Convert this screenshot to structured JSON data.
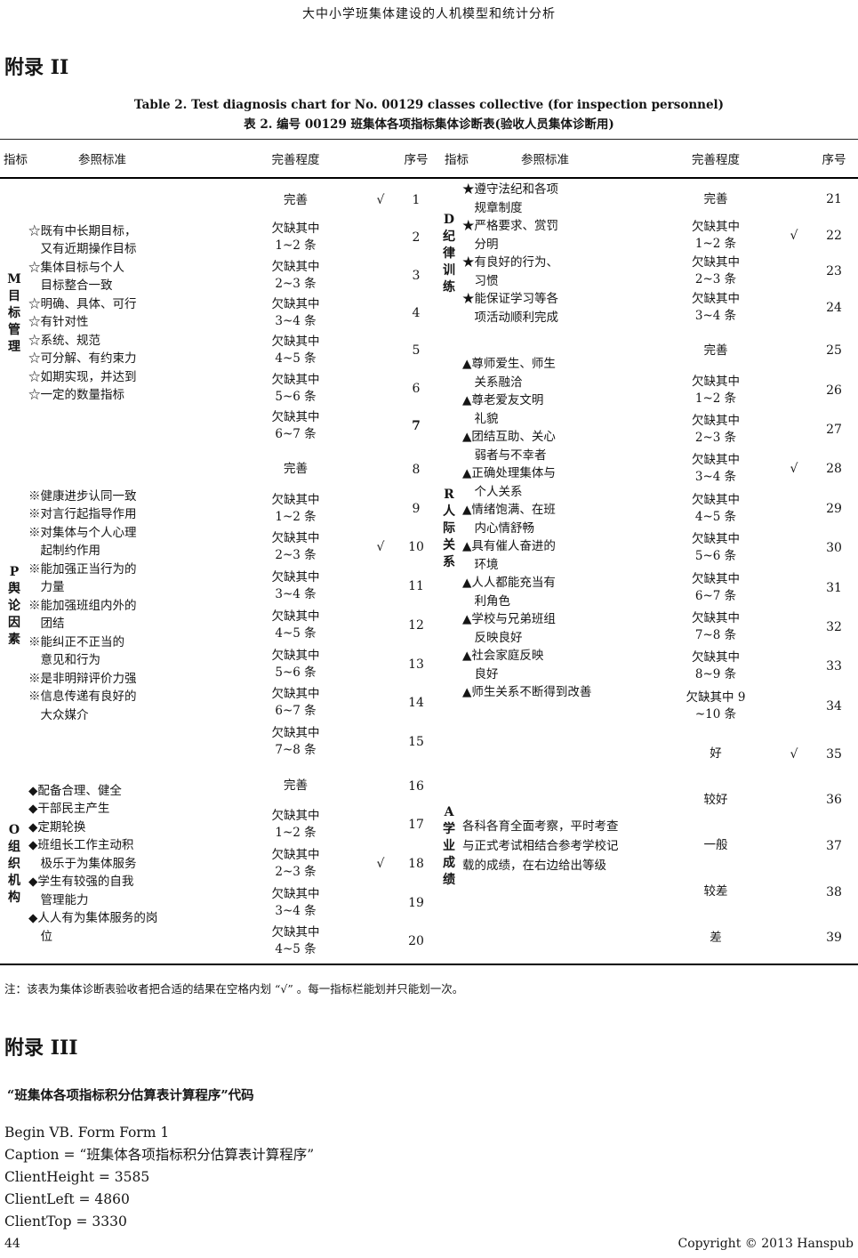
{
  "page": {
    "running_header": "大中小学班集体建设的人机模型和统计分析",
    "appendix2_heading": "附录 II",
    "table_title_en": "Table 2. Test diagnosis chart for No. 00129 classes collective (for inspection personnel)",
    "table_title_zh": "表 2.  编号 00129 班集体各项指标集体诊断表(验收人员集体诊断用)",
    "note": "注：该表为集体诊断表验收者把合适的结果在空格内划 “√” 。每一指标栏能划并只能划一次。",
    "appendix3_heading": "附录 III",
    "code_caption": "“班集体各项指标积分估算表计算程序”代码",
    "code_lines": [
      "Begin VB. Form Form 1",
      "Caption =  “班集体各项指标积分估算表计算程序”",
      "ClientHeight = 3585",
      "ClientLeft = 4860",
      "ClientTop = 3330"
    ],
    "footer_page": "44",
    "footer_copyright": "Copyright © 2013 Hanspub"
  },
  "table": {
    "headers": {
      "indicator": "指标",
      "criteria": "参照标准",
      "degree": "完善程度",
      "serial": "序号"
    },
    "check_glyph": "√",
    "halves": [
      {
        "sections": [
          {
            "id": "M",
            "group": "M\n目\n标\n管\n理",
            "criteria": [
              "☆既有中长期目标，\n　又有近期操作目标",
              "☆集体目标与个人\n　目标整合一致",
              "☆明确、具体、可行",
              "☆有针对性",
              "☆系统、规范",
              "☆可分解、有约束力",
              "☆如期实现，并达到",
              "☆一定的数量指标"
            ],
            "rows": [
              {
                "degree": "完善",
                "checked": true,
                "serial": "1"
              },
              {
                "degree": "欠缺其中\n1~2 条",
                "serial": "2"
              },
              {
                "degree": "欠缺其中\n2~3 条",
                "serial": "3"
              },
              {
                "degree": "欠缺其中\n3~4 条",
                "serial": "4"
              },
              {
                "degree": "欠缺其中\n4~5 条",
                "serial": "5"
              },
              {
                "degree": "欠缺其中\n5~6 条",
                "serial": "6"
              },
              {
                "degree": "欠缺其中\n6~7 条",
                "serial": "7",
                "bold": true
              }
            ]
          },
          {
            "id": "P",
            "group": "P\n舆\n论\n因\n素",
            "criteria": [
              "※健康进步认同一致",
              "※对言行起指导作用",
              "※对集体与个人心理\n　起制约作用",
              "※能加强正当行为的\n　力量",
              "※能加强班组内外的\n　团结",
              "※能纠正不正当的\n　意见和行为",
              "※是非明辩评价力强",
              "※信息传递有良好的\n　大众媒介"
            ],
            "rows": [
              {
                "degree": "完善",
                "serial": "8"
              },
              {
                "degree": "欠缺其中\n1~2 条",
                "serial": "9"
              },
              {
                "degree": "欠缺其中\n2~3 条",
                "checked": true,
                "serial": "10"
              },
              {
                "degree": "欠缺其中\n3~4 条",
                "serial": "11"
              },
              {
                "degree": "欠缺其中\n4~5 条",
                "serial": "12"
              },
              {
                "degree": "欠缺其中\n5~6 条",
                "serial": "13"
              },
              {
                "degree": "欠缺其中\n6~7 条",
                "serial": "14"
              },
              {
                "degree": "欠缺其中\n7~8 条",
                "serial": "15"
              }
            ]
          },
          {
            "id": "O",
            "group": "O\n组\n织\n机\n构",
            "criteria": [
              "◆配备合理、健全",
              "◆干部民主产生",
              "◆定期轮换",
              "◆班组长工作主动积\n　极乐于为集体服务",
              "◆学生有较强的自我\n　管理能力",
              "◆人人有为集体服务的岗\n　位"
            ],
            "rows": [
              {
                "degree": "完善",
                "serial": "16"
              },
              {
                "degree": "欠缺其中\n1~2 条",
                "serial": "17"
              },
              {
                "degree": "欠缺其中\n2~3 条",
                "checked": true,
                "serial": "18"
              },
              {
                "degree": "欠缺其中\n3~4 条",
                "serial": "19"
              },
              {
                "degree": "欠缺其中\n4~5 条",
                "serial": "20"
              }
            ]
          }
        ]
      },
      {
        "sections": [
          {
            "id": "D",
            "group": "D\n纪\n律\n训\n练",
            "criteria": [
              "★遵守法纪和各项\n　规章制度",
              "★严格要求、赏罚\n　分明",
              "★有良好的行为、\n　习惯",
              "★能保证学习等各\n　项活动顺利完成"
            ],
            "rows": [
              {
                "degree": "完善",
                "serial": "21"
              },
              {
                "degree": "欠缺其中\n1~2 条",
                "checked": true,
                "serial": "22"
              },
              {
                "degree": "欠缺其中\n2~3 条",
                "serial": "23"
              },
              {
                "degree": "欠缺其中\n3~4 条",
                "serial": "24"
              }
            ]
          },
          {
            "id": "R",
            "group": "R\n人\n际\n关\n系",
            "criteria": [
              "▲尊师爱生、师生\n　关系融洽",
              "▲尊老爱友文明\n　礼貌",
              "▲团结互助、关心\n　弱者与不幸者",
              "▲正确处理集体与\n　个人关系",
              "▲情绪饱满、在班\n　内心情舒畅",
              "▲具有催人奋进的\n　环境",
              "▲人人都能充当有\n　利角色",
              "▲学校与兄弟班组\n　反映良好",
              "▲社会家庭反映\n　良好",
              "▲师生关系不断得到改善"
            ],
            "rows": [
              {
                "degree": "完善",
                "serial": "25"
              },
              {
                "degree": "欠缺其中\n1~2 条",
                "serial": "26"
              },
              {
                "degree": "欠缺其中\n2~3 条",
                "serial": "27"
              },
              {
                "degree": "欠缺其中\n3~4 条",
                "checked": true,
                "serial": "28"
              },
              {
                "degree": "欠缺其中\n4~5 条",
                "serial": "29"
              },
              {
                "degree": "欠缺其中\n5~6 条",
                "serial": "30"
              },
              {
                "degree": "欠缺其中\n6~7 条",
                "serial": "31"
              },
              {
                "degree": "欠缺其中\n7~8 条",
                "serial": "32"
              },
              {
                "degree": "欠缺其中\n8~9 条",
                "serial": "33"
              },
              {
                "degree": "欠缺其中 9\n~10 条",
                "serial": "34"
              }
            ]
          },
          {
            "id": "A",
            "group": "A\n学\n业\n成\n绩",
            "criteria": [
              "各科各育全面考察，平时考查与正式考试相结合参考学校记载的成绩，在右边给出等级"
            ],
            "rows": [
              {
                "degree": "好",
                "checked": true,
                "serial": "35"
              },
              {
                "degree": "较好",
                "serial": "36"
              },
              {
                "degree": "一般",
                "serial": "37"
              },
              {
                "degree": "较差",
                "serial": "38"
              },
              {
                "degree": "差",
                "serial": "39"
              }
            ]
          }
        ]
      }
    ]
  }
}
